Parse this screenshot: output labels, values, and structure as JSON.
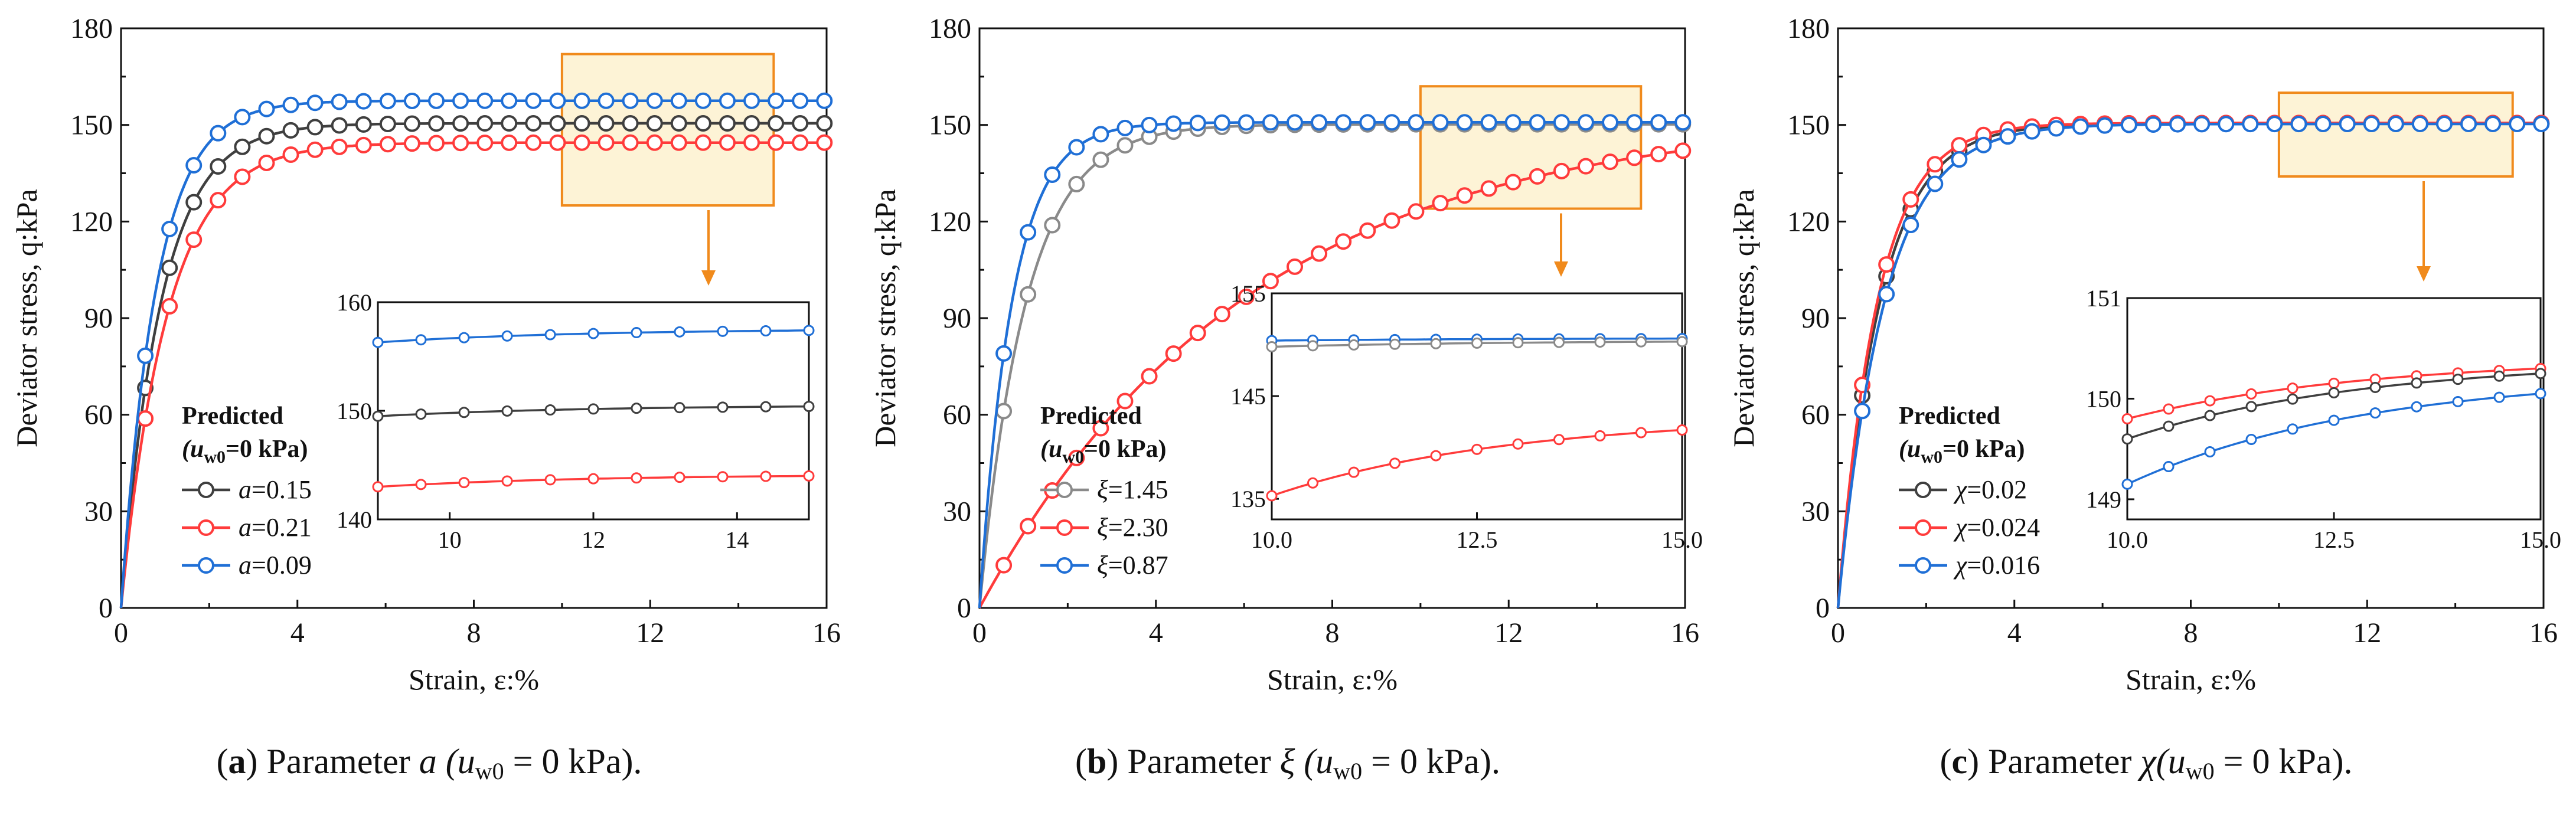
{
  "chart_data": [
    {
      "type": "line",
      "panel_label": "a",
      "caption": {
        "text": "Parameter",
        "symbol": "a",
        "condition": "(u",
        "sub": "w0",
        "cond_tail": " = 0 kPa)."
      },
      "xlabel": "Strain, ε:%",
      "ylabel": "Deviator stress, q:kPa",
      "xlim": [
        0,
        16
      ],
      "ylim": [
        0,
        180
      ],
      "xticks": [
        "0",
        "4",
        "8",
        "12",
        "16"
      ],
      "yticks": [
        "0",
        "30",
        "60",
        "90",
        "120",
        "150",
        "180"
      ],
      "legend": {
        "title": "Predicted",
        "subtitle": "(u",
        "sub": "w0",
        "sub_tail": "=0 kPa)",
        "placement": "bottom-left"
      },
      "series": [
        {
          "name": "a=0.15",
          "symbol": "a",
          "value": "=0.15",
          "color": "#3f3f3f",
          "qmax": 150.5,
          "k": 1.1
        },
        {
          "name": "a=0.21",
          "symbol": "a",
          "value": "=0.21",
          "color": "#ff3b3b",
          "qmax": 144.5,
          "k": 0.95
        },
        {
          "name": "a=0.09",
          "symbol": "a",
          "value": "=0.09",
          "color": "#1f6fd6",
          "qmax": 157.5,
          "k": 1.25
        }
      ],
      "zoom_box": {
        "x": [
          10,
          14.8
        ],
        "y": [
          125,
          172
        ]
      },
      "inset": {
        "xlim": [
          9,
          15
        ],
        "ylim": [
          140,
          160
        ],
        "xticks": [
          "10",
          "12",
          "14"
        ],
        "yticks": [
          "140",
          "150",
          "160"
        ],
        "series": [
          {
            "name": "a=0.09",
            "values_at": [
              [
                9,
                156.3
              ],
              [
                15,
                157.4
              ]
            ],
            "color": "#1f6fd6"
          },
          {
            "name": "a=0.15",
            "values_at": [
              [
                9,
                149.5
              ],
              [
                15,
                150.4
              ]
            ],
            "color": "#3f3f3f"
          },
          {
            "name": "a=0.21",
            "values_at": [
              [
                9,
                143.0
              ],
              [
                15,
                144.0
              ]
            ],
            "color": "#ff3b3b"
          }
        ]
      }
    },
    {
      "type": "line",
      "panel_label": "b",
      "caption": {
        "text": "Parameter",
        "symbol": "ξ",
        "condition": "(u",
        "sub": "w0",
        "cond_tail": " = 0 kPa)."
      },
      "xlabel": "Strain, ε:%",
      "ylabel": "Deviator stress, q:kPa",
      "xlim": [
        0,
        16
      ],
      "ylim": [
        0,
        180
      ],
      "xticks": [
        "0",
        "4",
        "8",
        "12",
        "16"
      ],
      "yticks": [
        "0",
        "30",
        "60",
        "90",
        "120",
        "150",
        "180"
      ],
      "legend": {
        "title": "Predicted",
        "subtitle": "(u",
        "sub": "w0",
        "sub_tail": "=0 kPa)",
        "placement": "bottom-left"
      },
      "series": [
        {
          "name": "ξ=1.45",
          "symbol": "ξ",
          "value": "=1.45",
          "color": "#8a8a8a",
          "qmax": 150.2,
          "k": 0.95
        },
        {
          "name": "ξ=2.30",
          "symbol": "ξ",
          "value": "=2.30",
          "color": "#ff3b3b",
          "qmax": 153.0,
          "k": 0.165
        },
        {
          "name": "ξ=0.87",
          "symbol": "ξ",
          "value": "=0.87",
          "color": "#1f6fd6",
          "qmax": 150.8,
          "k": 1.35
        }
      ],
      "zoom_box": {
        "x": [
          10,
          15
        ],
        "y": [
          124,
          162
        ]
      },
      "inset": {
        "xlim": [
          10,
          15
        ],
        "ylim": [
          133,
          155
        ],
        "xticks": [
          "10.0",
          "12.5",
          "15.0"
        ],
        "yticks": [
          "135",
          "145",
          "155"
        ],
        "series": [
          {
            "name": "ξ=0.87",
            "values_at": [
              [
                10,
                150.4
              ],
              [
                15,
                150.6
              ]
            ],
            "color": "#1f6fd6"
          },
          {
            "name": "ξ=1.45",
            "values_at": [
              [
                10,
                149.8
              ],
              [
                15,
                150.3
              ]
            ],
            "color": "#8a8a8a"
          },
          {
            "name": "ξ=2.30",
            "values_at": [
              [
                10,
                135.3
              ],
              [
                15,
                141.7
              ]
            ],
            "color": "#ff3b3b"
          }
        ]
      }
    },
    {
      "type": "line",
      "panel_label": "c",
      "caption": {
        "text": "Parameter",
        "symbol": "χ",
        "condition": "(u",
        "sub": "w0",
        "cond_tail": " = 0 kPa)."
      },
      "xlabel": "Strain, ε:%",
      "ylabel": "Deviator stress, q:kPa",
      "xlim": [
        0,
        16
      ],
      "ylim": [
        0,
        180
      ],
      "xticks": [
        "0",
        "4",
        "8",
        "12",
        "16"
      ],
      "yticks": [
        "0",
        "30",
        "60",
        "90",
        "120",
        "150",
        "180"
      ],
      "legend": {
        "title": "Predicted",
        "subtitle": "(u",
        "sub": "w0",
        "sub_tail": "=0 kPa)",
        "placement": "bottom-left"
      },
      "series": [
        {
          "name": "χ=0.02",
          "symbol": "χ",
          "value": "=0.02",
          "color": "#3f3f3f",
          "qmax": 150.4,
          "k": 1.05
        },
        {
          "name": "χ=0.024",
          "symbol": "χ",
          "value": "=0.024",
          "color": "#ff3b3b",
          "qmax": 150.6,
          "k": 1.12
        },
        {
          "name": "χ=0.016",
          "symbol": "χ",
          "value": "=0.016",
          "color": "#1f6fd6",
          "qmax": 150.3,
          "k": 0.95
        }
      ],
      "zoom_box": {
        "x": [
          10,
          15.3
        ],
        "y": [
          134,
          160
        ]
      },
      "inset": {
        "xlim": [
          10,
          15
        ],
        "ylim": [
          148.8,
          151
        ],
        "xticks": [
          "10.0",
          "12.5",
          "15.0"
        ],
        "yticks": [
          "149",
          "150",
          "151"
        ],
        "series": [
          {
            "name": "χ=0.024",
            "values_at": [
              [
                10,
                149.8
              ],
              [
                15,
                150.3
              ]
            ],
            "color": "#ff3b3b"
          },
          {
            "name": "χ=0.02",
            "values_at": [
              [
                10,
                149.6
              ],
              [
                15,
                150.25
              ]
            ],
            "color": "#3f3f3f"
          },
          {
            "name": "χ=0.016",
            "values_at": [
              [
                10,
                149.15
              ],
              [
                15,
                150.05
              ]
            ],
            "color": "#1f6fd6"
          }
        ]
      }
    }
  ]
}
